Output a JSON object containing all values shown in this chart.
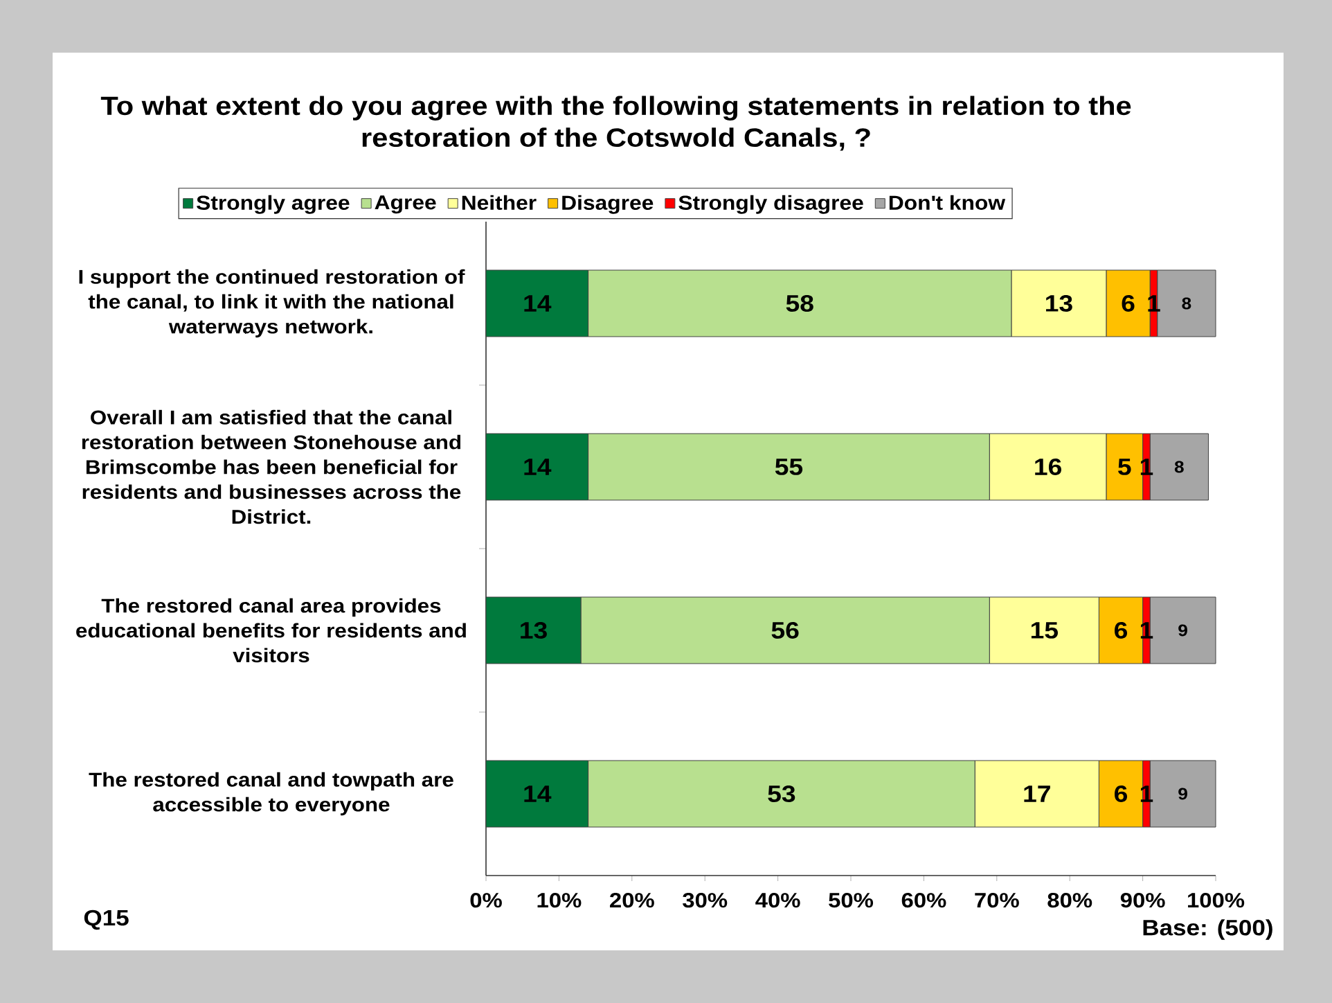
{
  "chart_data": {
    "type": "bar",
    "orientation": "horizontal",
    "stacked": true,
    "title": "To what extent do you agree with the following statements in relation to the restoration of the Cotswold Canals, ?",
    "categories": [
      "I support the continued restoration of the canal, to link it with the national waterways network.",
      "Overall I am satisfied that the canal restoration between Stonehouse and Brimscombe has been beneficial for residents and businesses across the District.",
      "The restored canal area provides educational benefits for residents and visitors",
      "The restored canal and towpath are accessible to everyone"
    ],
    "series": [
      {
        "name": "Strongly agree",
        "color": "#007a3d",
        "values": [
          14,
          14,
          13,
          14
        ]
      },
      {
        "name": "Agree",
        "color": "#b8e08f",
        "values": [
          58,
          55,
          56,
          53
        ]
      },
      {
        "name": "Neither",
        "color": "#ffff99",
        "values": [
          13,
          16,
          15,
          17
        ]
      },
      {
        "name": "Disagree",
        "color": "#ffc000",
        "values": [
          6,
          5,
          6,
          6
        ]
      },
      {
        "name": "Strongly disagree",
        "color": "#ff0000",
        "values": [
          1,
          1,
          1,
          1
        ]
      },
      {
        "name": "Don't know",
        "color": "#a6a6a6",
        "values": [
          8,
          8,
          9,
          9
        ]
      }
    ],
    "xlim": [
      0,
      100
    ],
    "xticks": [
      {
        "value": 0,
        "label": "0%"
      },
      {
        "value": 10,
        "label": "10%"
      },
      {
        "value": 20,
        "label": "20%"
      },
      {
        "value": 30,
        "label": "30%"
      },
      {
        "value": 40,
        "label": "40%"
      },
      {
        "value": 50,
        "label": "50%"
      },
      {
        "value": 60,
        "label": "60%"
      },
      {
        "value": 70,
        "label": "70%"
      },
      {
        "value": 80,
        "label": "80%"
      },
      {
        "value": 90,
        "label": "90%"
      },
      {
        "value": 100,
        "label": "100%"
      }
    ],
    "data_labels": true,
    "legend": "top",
    "annotations": [
      "Q15",
      "Base: (500)"
    ]
  }
}
